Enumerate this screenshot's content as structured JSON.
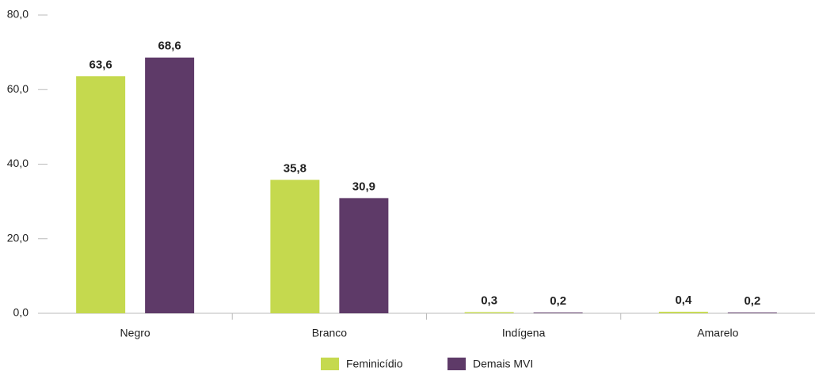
{
  "chart_data": {
    "type": "bar",
    "categories": [
      "Negro",
      "Branco",
      "Indígena",
      "Amarelo"
    ],
    "series": [
      {
        "name": "Feminicídio",
        "color": "#c5d94e",
        "values": [
          63.6,
          35.8,
          0.3,
          0.4
        ],
        "value_labels": [
          "63,6",
          "35,8",
          "0,3",
          "0,4"
        ]
      },
      {
        "name": "Demais MVI",
        "color": "#5e3a68",
        "values": [
          68.6,
          30.9,
          0.2,
          0.2
        ],
        "value_labels": [
          "68,6",
          "30,9",
          "0,2",
          "0,2"
        ]
      }
    ],
    "ylim": [
      0,
      80
    ],
    "yticks": [
      {
        "value": 0,
        "label": "0,0"
      },
      {
        "value": 20,
        "label": "20,0"
      },
      {
        "value": 40,
        "label": "40,0"
      },
      {
        "value": 60,
        "label": "60,0"
      },
      {
        "value": 80,
        "label": "80,0"
      }
    ],
    "legend": "bottom"
  }
}
